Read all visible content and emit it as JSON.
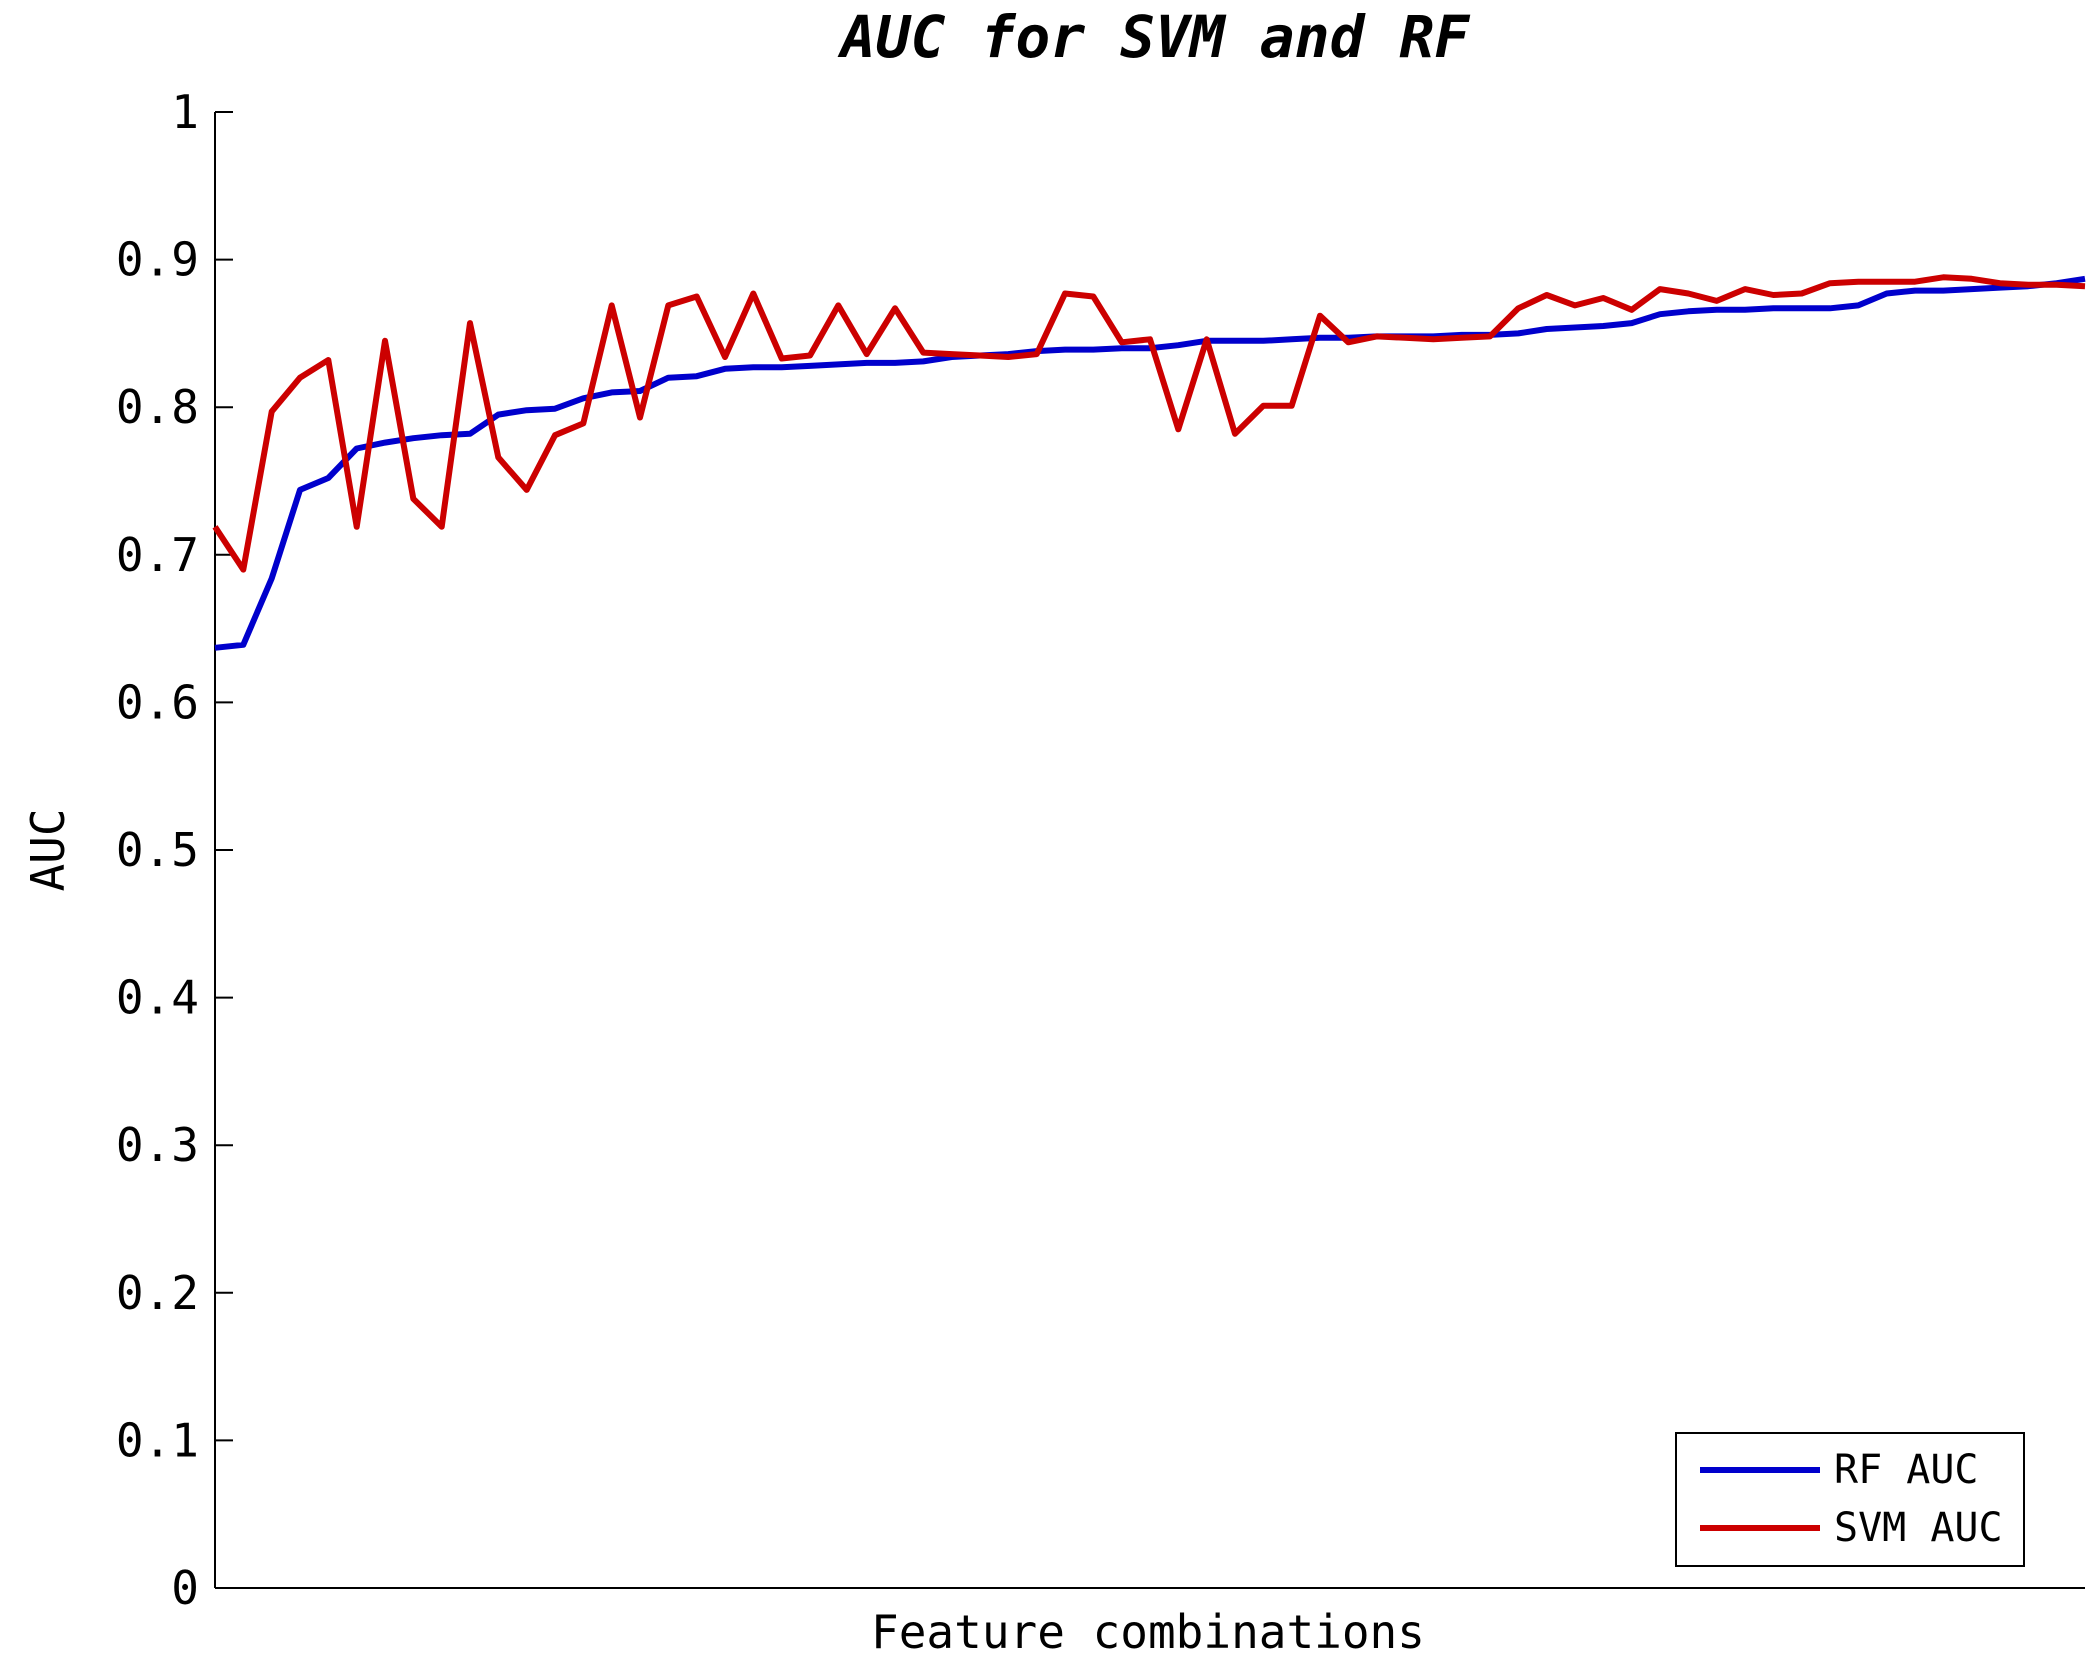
{
  "chart_data": {
    "type": "line",
    "title": "AUC for SVM and RF",
    "xlabel": "Feature combinations",
    "ylabel": "AUC",
    "ylim": [
      0,
      1
    ],
    "xlim": [
      1,
      64
    ],
    "yticks": [
      "0",
      "0.1",
      "0.2",
      "0.3",
      "0.4",
      "0.5",
      "0.6",
      "0.7",
      "0.8",
      "0.9",
      "1"
    ],
    "grid": false,
    "legend_position": "bottom-right",
    "series": [
      {
        "name": "RF AUC",
        "color": "#0000cc",
        "values": [
          0.637,
          0.639,
          0.684,
          0.744,
          0.752,
          0.772,
          0.776,
          0.779,
          0.781,
          0.782,
          0.795,
          0.798,
          0.799,
          0.806,
          0.81,
          0.811,
          0.82,
          0.821,
          0.826,
          0.827,
          0.827,
          0.828,
          0.829,
          0.83,
          0.83,
          0.831,
          0.834,
          0.835,
          0.836,
          0.838,
          0.839,
          0.839,
          0.84,
          0.84,
          0.842,
          0.845,
          0.845,
          0.845,
          0.846,
          0.847,
          0.847,
          0.848,
          0.848,
          0.848,
          0.849,
          0.849,
          0.85,
          0.853,
          0.854,
          0.855,
          0.857,
          0.863,
          0.865,
          0.866,
          0.866,
          0.867,
          0.867,
          0.867,
          0.869,
          0.877,
          0.879,
          0.879,
          0.88,
          0.881,
          0.882,
          0.884,
          0.887
        ]
      },
      {
        "name": "SVM AUC",
        "color": "#cc0000",
        "values": [
          0.719,
          0.69,
          0.797,
          0.82,
          0.832,
          0.719,
          0.845,
          0.738,
          0.719,
          0.857,
          0.766,
          0.744,
          0.781,
          0.789,
          0.869,
          0.793,
          0.869,
          0.875,
          0.834,
          0.877,
          0.833,
          0.835,
          0.869,
          0.836,
          0.867,
          0.837,
          0.836,
          0.835,
          0.834,
          0.836,
          0.877,
          0.875,
          0.844,
          0.846,
          0.785,
          0.846,
          0.782,
          0.801,
          0.801,
          0.862,
          0.844,
          0.848,
          0.847,
          0.846,
          0.847,
          0.848,
          0.867,
          0.876,
          0.869,
          0.874,
          0.866,
          0.88,
          0.877,
          0.872,
          0.88,
          0.876,
          0.877,
          0.884,
          0.885,
          0.885,
          0.885,
          0.888,
          0.887,
          0.884,
          0.883,
          0.883,
          0.882
        ]
      }
    ]
  }
}
